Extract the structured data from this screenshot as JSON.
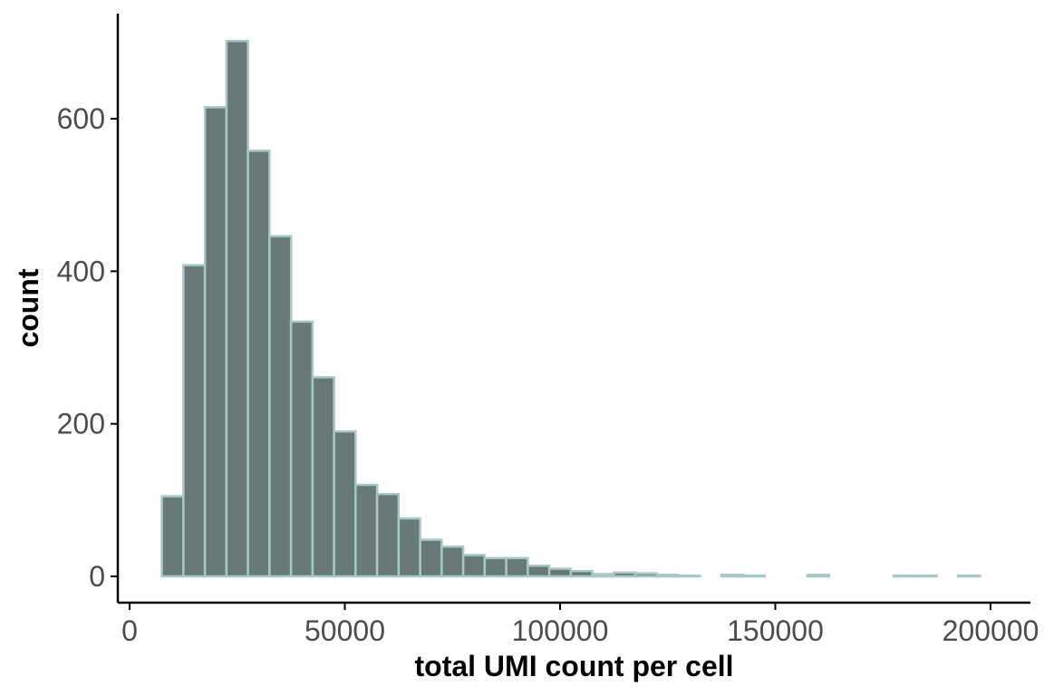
{
  "chart_data": {
    "type": "bar",
    "subtype": "histogram",
    "title": "",
    "xlabel": "total UMI count per cell",
    "ylabel": "count",
    "xlim": [
      0,
      200000
    ],
    "ylim": [
      0,
      700
    ],
    "x_ticks": [
      0,
      50000,
      100000,
      150000,
      200000
    ],
    "x_tick_labels": [
      "0",
      "50000",
      "100000",
      "150000",
      "200000"
    ],
    "y_ticks": [
      0,
      200,
      400,
      600
    ],
    "y_tick_labels": [
      "0",
      "200",
      "400",
      "600"
    ],
    "grid": false,
    "legend": "none",
    "bin_width": 5000,
    "bin_starts": [
      7500,
      12500,
      17500,
      22500,
      27500,
      32500,
      37500,
      42500,
      47500,
      52500,
      57500,
      62500,
      67500,
      72500,
      77500,
      82500,
      87500,
      92500,
      97500,
      102500,
      107500,
      112500,
      117500,
      122500,
      127500,
      132500,
      137500,
      142500,
      147500,
      152500,
      157500,
      162500,
      167500,
      172500,
      177500,
      182500,
      187500,
      192500
    ],
    "values": [
      105,
      408,
      615,
      702,
      558,
      446,
      334,
      261,
      190,
      120,
      108,
      76,
      48,
      39,
      28,
      24,
      24,
      14,
      10,
      7,
      3,
      5,
      4,
      2,
      1,
      0,
      2,
      1,
      0,
      0,
      2,
      0,
      0,
      0,
      1,
      1,
      0,
      1
    ],
    "colors": {
      "fill": "#687a78",
      "outline": "#a8c8c5",
      "axis": "#000000",
      "tick_text": "#4d4d4d"
    }
  }
}
